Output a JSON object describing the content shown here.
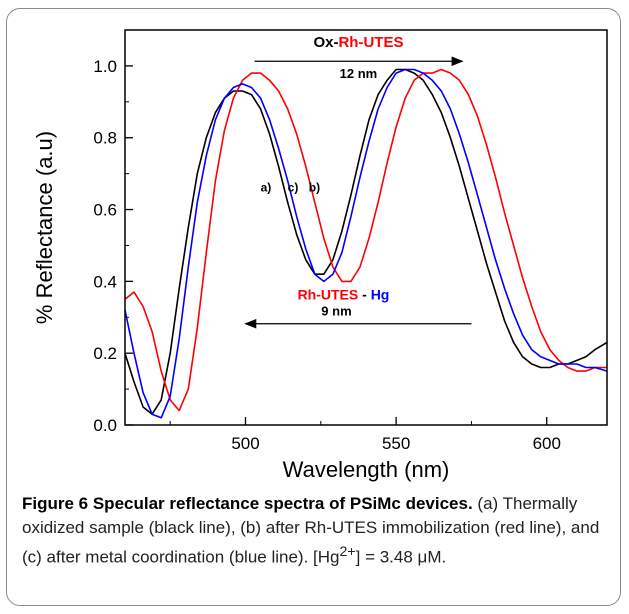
{
  "chart_data": {
    "type": "line",
    "xlabel": "Wavelength (nm)",
    "ylabel": "% Reflectance (a.u)",
    "xlim": [
      460,
      620
    ],
    "ylim": [
      0,
      1.1
    ],
    "x_ticks": [
      500,
      550,
      600
    ],
    "y_ticks": [
      0.0,
      0.2,
      0.4,
      0.6,
      0.8,
      1.0
    ],
    "x_tick_labels": [
      "500",
      "550",
      "600"
    ],
    "y_tick_labels": [
      "0.0",
      "0.2",
      "0.4",
      "0.6",
      "0.8",
      "1.0"
    ],
    "grid": false,
    "colors": {
      "a": "#000000",
      "b": "#ff0000",
      "c": "#0000ff"
    },
    "series": [
      {
        "name": "a)",
        "color": "#000000",
        "x": [
          460,
          463,
          466,
          469,
          472,
          475,
          478,
          481,
          484,
          487,
          490,
          493,
          496,
          499,
          502,
          505,
          508,
          511,
          514,
          517,
          520,
          523,
          526,
          529,
          532,
          535,
          538,
          541,
          544,
          547,
          550,
          553,
          556,
          559,
          562,
          565,
          568,
          571,
          574,
          577,
          580,
          583,
          586,
          589,
          592,
          595,
          598,
          601,
          604,
          607,
          610,
          613,
          616,
          620
        ],
        "y": [
          0.2,
          0.12,
          0.05,
          0.03,
          0.07,
          0.2,
          0.38,
          0.55,
          0.7,
          0.8,
          0.87,
          0.91,
          0.93,
          0.93,
          0.92,
          0.88,
          0.81,
          0.72,
          0.62,
          0.53,
          0.46,
          0.42,
          0.42,
          0.46,
          0.54,
          0.64,
          0.75,
          0.85,
          0.92,
          0.96,
          0.99,
          0.99,
          0.98,
          0.96,
          0.92,
          0.87,
          0.8,
          0.72,
          0.63,
          0.54,
          0.45,
          0.37,
          0.29,
          0.23,
          0.19,
          0.17,
          0.16,
          0.16,
          0.17,
          0.17,
          0.18,
          0.19,
          0.21,
          0.23
        ]
      },
      {
        "name": "b)",
        "color": "#ff0000",
        "x": [
          460,
          463,
          466,
          469,
          472,
          475,
          478,
          481,
          484,
          487,
          490,
          493,
          496,
          499,
          502,
          505,
          508,
          511,
          514,
          517,
          520,
          523,
          526,
          529,
          532,
          535,
          538,
          541,
          544,
          547,
          550,
          553,
          556,
          559,
          562,
          565,
          568,
          571,
          574,
          577,
          580,
          583,
          586,
          589,
          592,
          595,
          598,
          601,
          604,
          607,
          610,
          613,
          616,
          620
        ],
        "y": [
          0.35,
          0.37,
          0.33,
          0.26,
          0.15,
          0.07,
          0.04,
          0.1,
          0.27,
          0.48,
          0.68,
          0.82,
          0.91,
          0.96,
          0.98,
          0.98,
          0.96,
          0.93,
          0.88,
          0.81,
          0.72,
          0.62,
          0.52,
          0.44,
          0.4,
          0.4,
          0.44,
          0.52,
          0.62,
          0.73,
          0.83,
          0.91,
          0.96,
          0.98,
          0.98,
          0.99,
          0.98,
          0.96,
          0.92,
          0.86,
          0.78,
          0.69,
          0.59,
          0.5,
          0.41,
          0.33,
          0.26,
          0.21,
          0.18,
          0.16,
          0.15,
          0.15,
          0.16,
          0.16
        ]
      },
      {
        "name": "c)",
        "color": "#0000ff",
        "x": [
          460,
          463,
          466,
          469,
          472,
          475,
          478,
          481,
          484,
          487,
          490,
          493,
          496,
          499,
          502,
          505,
          508,
          511,
          514,
          517,
          520,
          523,
          526,
          529,
          532,
          535,
          538,
          541,
          544,
          547,
          550,
          553,
          556,
          559,
          562,
          565,
          568,
          571,
          574,
          577,
          580,
          583,
          586,
          589,
          592,
          595,
          598,
          601,
          604,
          607,
          610,
          613,
          616,
          620
        ],
        "y": [
          0.32,
          0.2,
          0.09,
          0.03,
          0.02,
          0.08,
          0.24,
          0.44,
          0.62,
          0.75,
          0.85,
          0.91,
          0.94,
          0.95,
          0.94,
          0.91,
          0.85,
          0.77,
          0.68,
          0.58,
          0.49,
          0.42,
          0.4,
          0.42,
          0.48,
          0.58,
          0.69,
          0.79,
          0.88,
          0.94,
          0.98,
          0.99,
          0.99,
          0.98,
          0.96,
          0.93,
          0.88,
          0.81,
          0.73,
          0.64,
          0.55,
          0.46,
          0.38,
          0.31,
          0.25,
          0.21,
          0.19,
          0.18,
          0.17,
          0.17,
          0.17,
          0.16,
          0.16,
          0.15
        ]
      }
    ],
    "annotations": {
      "top_label_prefix": "Ox-",
      "top_label_rest": "Rh-UTES",
      "top_shift": "12 nm",
      "top_arrow_from_x": 503,
      "top_arrow_to_x": 572,
      "top_arrow_y": 1.013,
      "bottom_label_red": "Rh-UTES",
      "bottom_label_sep": " - ",
      "bottom_label_blue": "Hg",
      "bottom_shift": "9 nm",
      "bottom_arrow_from_x": 575,
      "bottom_arrow_to_x": 500,
      "bottom_arrow_y": 0.282,
      "series_labels": [
        {
          "text": "a)",
          "x": 505,
          "y": 0.65
        },
        {
          "text": "c)",
          "x": 514,
          "y": 0.65
        },
        {
          "text": "b)",
          "x": 521,
          "y": 0.65
        }
      ]
    }
  },
  "caption": {
    "label": "Figure 6",
    "title": " Specular reflectance spectra of PSiMc devices.",
    "body_1": " (a) Thermally oxidized sample (black line), (b) after Rh-UTES immobilization (red line), and (c) after metal coordination (blue line). [Hg",
    "sup": "2+",
    "body_2": "] = 3.48 μM."
  }
}
